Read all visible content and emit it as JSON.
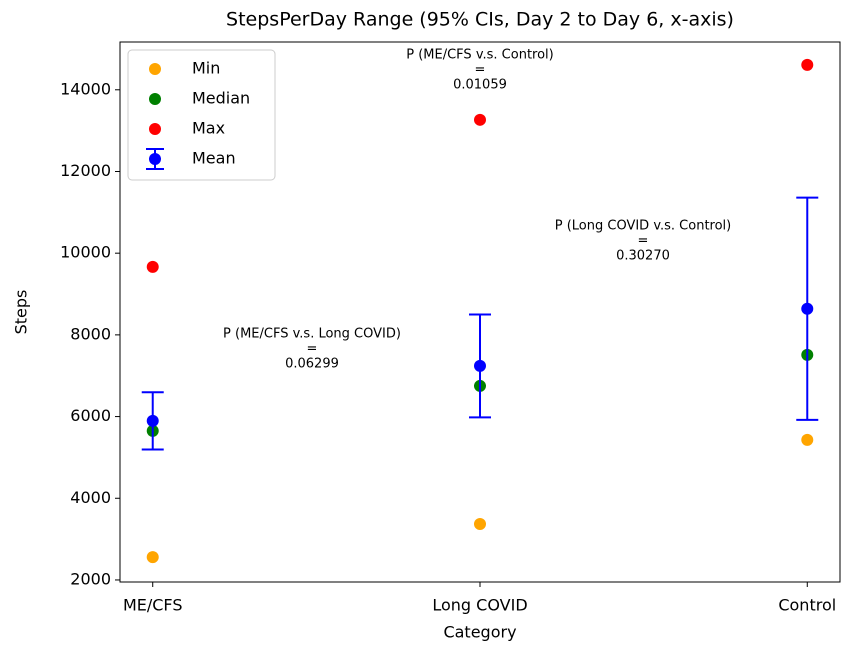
{
  "chart_data": {
    "type": "scatter",
    "title": "StepsPerDay Range (95% CIs, Day 2 to Day 6, x-axis)",
    "x_label": "Category",
    "y_label": "Steps",
    "categories": [
      "ME/CFS",
      "Long COVID",
      "Control"
    ],
    "series": [
      {
        "name": "Min",
        "color": "orange",
        "values": [
          2560,
          3370,
          5430
        ]
      },
      {
        "name": "Median",
        "color": "green",
        "values": [
          5650,
          6750,
          7510
        ]
      },
      {
        "name": "Max",
        "color": "red",
        "values": [
          9665,
          13265,
          14610
        ]
      },
      {
        "name": "Mean",
        "color": "blue",
        "values": [
          5895,
          7240,
          8640
        ],
        "errors": [
          700,
          1260,
          2720
        ]
      }
    ],
    "ylim": [
      1950,
      15170
    ],
    "yticks": [
      2000,
      4000,
      6000,
      8000,
      10000,
      12000,
      14000
    ],
    "legend": "upper left",
    "annotations": [
      [
        "P (ME/CFS v.s. Long COVID)",
        "=",
        "0.06299"
      ],
      [
        "P (ME/CFS v.s. Control)",
        "=",
        "0.01059"
      ],
      [
        "P (Long COVID v.s. Control)",
        "=",
        "0.30270"
      ]
    ]
  }
}
